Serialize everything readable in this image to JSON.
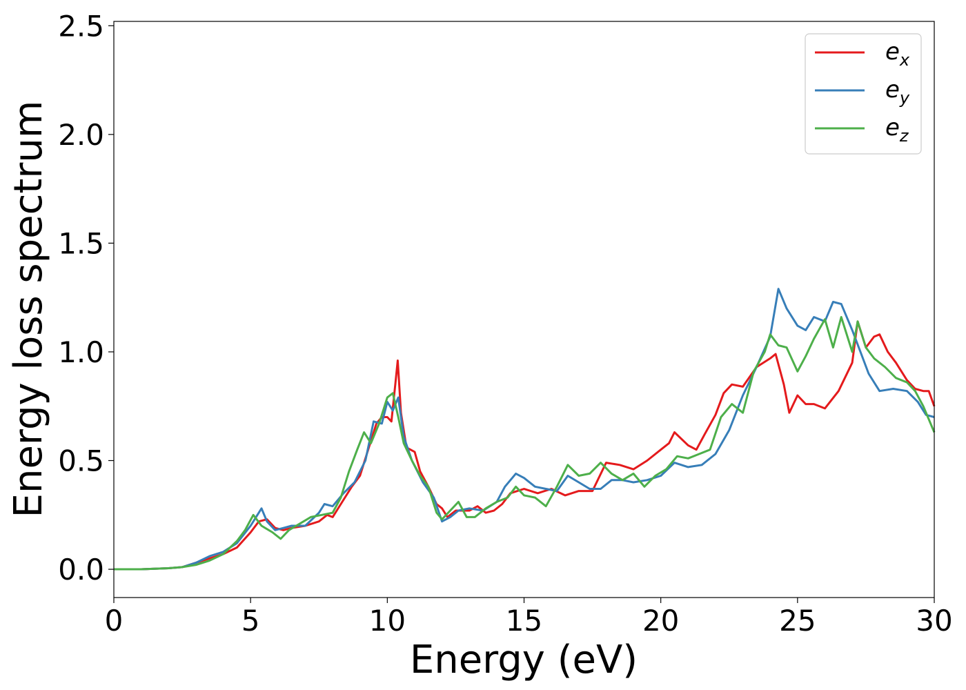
{
  "chart_data": {
    "type": "line",
    "xlabel": "Energy (eV)",
    "ylabel": "Energy loss spectrum",
    "xlim": [
      0,
      30
    ],
    "ylim": [
      -0.13,
      2.52
    ],
    "xticks": [
      "0",
      "5",
      "10",
      "15",
      "20",
      "25",
      "30"
    ],
    "yticks": [
      "0.0",
      "0.5",
      "1.0",
      "1.5",
      "2.0",
      "2.5"
    ],
    "grid": false,
    "legend_position": "top-right",
    "series": [
      {
        "name": "e",
        "subscript": "x",
        "color": "#e41a1c",
        "points": [
          [
            0,
            0
          ],
          [
            1,
            0
          ],
          [
            2,
            0.005
          ],
          [
            2.5,
            0.01
          ],
          [
            3,
            0.03
          ],
          [
            3.5,
            0.05
          ],
          [
            4,
            0.07
          ],
          [
            4.5,
            0.1
          ],
          [
            5,
            0.17
          ],
          [
            5.3,
            0.22
          ],
          [
            5.6,
            0.23
          ],
          [
            5.9,
            0.19
          ],
          [
            6.2,
            0.18
          ],
          [
            6.5,
            0.19
          ],
          [
            7,
            0.2
          ],
          [
            7.5,
            0.22
          ],
          [
            7.8,
            0.25
          ],
          [
            8,
            0.24
          ],
          [
            8.3,
            0.3
          ],
          [
            8.7,
            0.38
          ],
          [
            9,
            0.43
          ],
          [
            9.3,
            0.55
          ],
          [
            9.6,
            0.67
          ],
          [
            9.8,
            0.7
          ],
          [
            10,
            0.7
          ],
          [
            10.15,
            0.68
          ],
          [
            10.3,
            0.86
          ],
          [
            10.38,
            0.96
          ],
          [
            10.5,
            0.72
          ],
          [
            10.7,
            0.56
          ],
          [
            11,
            0.54
          ],
          [
            11.2,
            0.45
          ],
          [
            11.5,
            0.38
          ],
          [
            11.8,
            0.3
          ],
          [
            12,
            0.28
          ],
          [
            12.2,
            0.24
          ],
          [
            12.5,
            0.27
          ],
          [
            12.8,
            0.27
          ],
          [
            13,
            0.27
          ],
          [
            13.3,
            0.29
          ],
          [
            13.6,
            0.26
          ],
          [
            13.9,
            0.27
          ],
          [
            14.2,
            0.3
          ],
          [
            14.5,
            0.35
          ],
          [
            15,
            0.37
          ],
          [
            15.5,
            0.35
          ],
          [
            16,
            0.37
          ],
          [
            16.5,
            0.34
          ],
          [
            17,
            0.36
          ],
          [
            17.5,
            0.36
          ],
          [
            18,
            0.49
          ],
          [
            18.5,
            0.48
          ],
          [
            19,
            0.46
          ],
          [
            19.5,
            0.5
          ],
          [
            20,
            0.55
          ],
          [
            20.3,
            0.58
          ],
          [
            20.5,
            0.63
          ],
          [
            21,
            0.57
          ],
          [
            21.3,
            0.55
          ],
          [
            21.6,
            0.62
          ],
          [
            22,
            0.71
          ],
          [
            22.3,
            0.81
          ],
          [
            22.6,
            0.85
          ],
          [
            23,
            0.84
          ],
          [
            23.5,
            0.93
          ],
          [
            24,
            0.97
          ],
          [
            24.2,
            0.99
          ],
          [
            24.5,
            0.85
          ],
          [
            24.7,
            0.72
          ],
          [
            25,
            0.8
          ],
          [
            25.3,
            0.76
          ],
          [
            25.6,
            0.76
          ],
          [
            26,
            0.74
          ],
          [
            26.5,
            0.82
          ],
          [
            27,
            0.95
          ],
          [
            27.2,
            1.14
          ],
          [
            27.5,
            1.02
          ],
          [
            27.8,
            1.07
          ],
          [
            28,
            1.08
          ],
          [
            28.3,
            1.0
          ],
          [
            28.6,
            0.95
          ],
          [
            29,
            0.87
          ],
          [
            29.3,
            0.83
          ],
          [
            29.6,
            0.82
          ],
          [
            29.8,
            0.82
          ],
          [
            30,
            0.75
          ]
        ]
      },
      {
        "name": "e",
        "subscript": "y",
        "color": "#377eb8",
        "points": [
          [
            0,
            0
          ],
          [
            1,
            0
          ],
          [
            2,
            0.005
          ],
          [
            2.5,
            0.01
          ],
          [
            3,
            0.03
          ],
          [
            3.5,
            0.06
          ],
          [
            4,
            0.08
          ],
          [
            4.5,
            0.12
          ],
          [
            5,
            0.2
          ],
          [
            5.4,
            0.28
          ],
          [
            5.6,
            0.22
          ],
          [
            5.9,
            0.18
          ],
          [
            6.2,
            0.19
          ],
          [
            6.5,
            0.2
          ],
          [
            7,
            0.2
          ],
          [
            7.5,
            0.26
          ],
          [
            7.7,
            0.3
          ],
          [
            8,
            0.29
          ],
          [
            8.4,
            0.35
          ],
          [
            8.8,
            0.4
          ],
          [
            9.2,
            0.5
          ],
          [
            9.5,
            0.68
          ],
          [
            9.8,
            0.67
          ],
          [
            10,
            0.77
          ],
          [
            10.2,
            0.73
          ],
          [
            10.4,
            0.79
          ],
          [
            10.6,
            0.61
          ],
          [
            10.9,
            0.5
          ],
          [
            11.3,
            0.4
          ],
          [
            11.7,
            0.33
          ],
          [
            12,
            0.22
          ],
          [
            12.3,
            0.24
          ],
          [
            12.6,
            0.27
          ],
          [
            13,
            0.28
          ],
          [
            13.5,
            0.27
          ],
          [
            14,
            0.31
          ],
          [
            14.3,
            0.38
          ],
          [
            14.7,
            0.44
          ],
          [
            15,
            0.42
          ],
          [
            15.4,
            0.38
          ],
          [
            15.8,
            0.37
          ],
          [
            16.2,
            0.36
          ],
          [
            16.6,
            0.43
          ],
          [
            17,
            0.4
          ],
          [
            17.4,
            0.37
          ],
          [
            17.8,
            0.37
          ],
          [
            18.2,
            0.41
          ],
          [
            18.6,
            0.41
          ],
          [
            19,
            0.4
          ],
          [
            19.5,
            0.41
          ],
          [
            20,
            0.43
          ],
          [
            20.5,
            0.49
          ],
          [
            21,
            0.47
          ],
          [
            21.5,
            0.48
          ],
          [
            22,
            0.53
          ],
          [
            22.5,
            0.64
          ],
          [
            23,
            0.8
          ],
          [
            23.5,
            0.93
          ],
          [
            24,
            1.07
          ],
          [
            24.3,
            1.29
          ],
          [
            24.6,
            1.2
          ],
          [
            25,
            1.12
          ],
          [
            25.3,
            1.1
          ],
          [
            25.6,
            1.16
          ],
          [
            26,
            1.14
          ],
          [
            26.3,
            1.23
          ],
          [
            26.6,
            1.22
          ],
          [
            27,
            1.1
          ],
          [
            27.3,
            1.0
          ],
          [
            27.6,
            0.9
          ],
          [
            28,
            0.82
          ],
          [
            28.5,
            0.83
          ],
          [
            29,
            0.82
          ],
          [
            29.4,
            0.77
          ],
          [
            29.7,
            0.71
          ],
          [
            30,
            0.7
          ]
        ]
      },
      {
        "name": "e",
        "subscript": "z",
        "color": "#4daf4a",
        "points": [
          [
            0,
            0
          ],
          [
            1,
            0
          ],
          [
            2,
            0.005
          ],
          [
            2.5,
            0.01
          ],
          [
            3,
            0.02
          ],
          [
            3.5,
            0.04
          ],
          [
            4,
            0.07
          ],
          [
            4.5,
            0.13
          ],
          [
            4.8,
            0.18
          ],
          [
            5.1,
            0.25
          ],
          [
            5.4,
            0.2
          ],
          [
            5.8,
            0.17
          ],
          [
            6.1,
            0.14
          ],
          [
            6.4,
            0.18
          ],
          [
            6.8,
            0.21
          ],
          [
            7.2,
            0.24
          ],
          [
            7.6,
            0.25
          ],
          [
            8,
            0.26
          ],
          [
            8.3,
            0.33
          ],
          [
            8.6,
            0.45
          ],
          [
            8.9,
            0.55
          ],
          [
            9.15,
            0.63
          ],
          [
            9.4,
            0.58
          ],
          [
            9.7,
            0.67
          ],
          [
            10,
            0.79
          ],
          [
            10.2,
            0.81
          ],
          [
            10.4,
            0.7
          ],
          [
            10.6,
            0.58
          ],
          [
            10.9,
            0.5
          ],
          [
            11.2,
            0.43
          ],
          [
            11.5,
            0.38
          ],
          [
            11.8,
            0.26
          ],
          [
            12,
            0.23
          ],
          [
            12.3,
            0.27
          ],
          [
            12.6,
            0.31
          ],
          [
            12.9,
            0.24
          ],
          [
            13.2,
            0.24
          ],
          [
            13.6,
            0.28
          ],
          [
            14,
            0.31
          ],
          [
            14.4,
            0.33
          ],
          [
            14.7,
            0.38
          ],
          [
            15,
            0.34
          ],
          [
            15.4,
            0.33
          ],
          [
            15.8,
            0.29
          ],
          [
            16.2,
            0.38
          ],
          [
            16.6,
            0.48
          ],
          [
            17,
            0.43
          ],
          [
            17.4,
            0.44
          ],
          [
            17.8,
            0.49
          ],
          [
            18.2,
            0.44
          ],
          [
            18.6,
            0.41
          ],
          [
            19,
            0.44
          ],
          [
            19.4,
            0.38
          ],
          [
            19.8,
            0.43
          ],
          [
            20.2,
            0.46
          ],
          [
            20.6,
            0.52
          ],
          [
            21,
            0.51
          ],
          [
            21.4,
            0.53
          ],
          [
            21.8,
            0.55
          ],
          [
            22.2,
            0.7
          ],
          [
            22.6,
            0.76
          ],
          [
            23,
            0.72
          ],
          [
            23.4,
            0.91
          ],
          [
            23.8,
            1.0
          ],
          [
            24,
            1.08
          ],
          [
            24.3,
            1.03
          ],
          [
            24.6,
            1.02
          ],
          [
            25,
            0.91
          ],
          [
            25.3,
            0.98
          ],
          [
            25.6,
            1.06
          ],
          [
            26,
            1.15
          ],
          [
            26.3,
            1.02
          ],
          [
            26.6,
            1.16
          ],
          [
            27,
            1.0
          ],
          [
            27.2,
            1.14
          ],
          [
            27.5,
            1.02
          ],
          [
            27.8,
            0.97
          ],
          [
            28.2,
            0.93
          ],
          [
            28.6,
            0.88
          ],
          [
            29,
            0.86
          ],
          [
            29.3,
            0.82
          ],
          [
            29.6,
            0.75
          ],
          [
            30,
            0.63
          ]
        ]
      }
    ]
  }
}
